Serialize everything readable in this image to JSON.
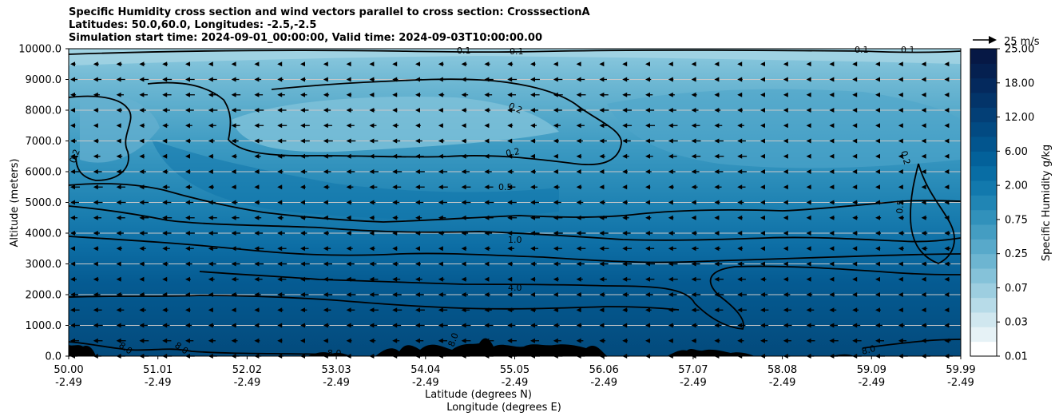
{
  "chart_data": {
    "type": "contour",
    "title_lines": [
      "Specific Humidity cross section and wind vectors parallel to cross section: CrosssectionA",
      "Latitudes: 50.0,60.0, Longitudes: -2.5,-2.5",
      "Simulation start time: 2024-09-01_00:00:00, Valid time: 2024-09-03T10:00:00.00"
    ],
    "ylabel": "Altitude (meters)",
    "xlabel_lines": [
      "Latitude (degrees N)",
      "Longitude (degrees E)"
    ],
    "ylim": [
      0,
      10000
    ],
    "y_ticks": [
      "0.0",
      "1000.0",
      "2000.0",
      "3000.0",
      "4000.0",
      "5000.0",
      "6000.0",
      "7000.0",
      "8000.0",
      "9000.0",
      "10000.0"
    ],
    "x_ticks_lat": [
      "50.00",
      "51.01",
      "52.02",
      "53.03",
      "54.04",
      "55.05",
      "56.06",
      "57.07",
      "58.08",
      "59.09",
      "59.99"
    ],
    "x_ticks_lon": [
      "-2.49",
      "-2.49",
      "-2.49",
      "-2.49",
      "-2.49",
      "-2.49",
      "-2.49",
      "-2.49",
      "-2.49",
      "-2.49",
      "-2.49"
    ],
    "colorbar": {
      "label": "Specific Humidity g/kg",
      "ticks": [
        "0.01",
        "0.03",
        "0.07",
        "0.25",
        "0.75",
        "2.00",
        "6.00",
        "12.00",
        "18.00",
        "25.00"
      ]
    },
    "contour_labels": [
      "0.1",
      "0.1",
      "0.1",
      "0.1",
      "0.2",
      "0.2",
      "0.2",
      "0.2",
      "0.5",
      "0.5",
      "1.0",
      "4.0",
      "8.0",
      "8.0",
      "8.0",
      "8.0",
      "8.0"
    ],
    "quiver_key": "25 m/s",
    "wind_direction": "toward south (left)",
    "colors": {
      "dark": "#024a7e",
      "mid": "#1a7db0",
      "light": "#7ec0d8",
      "lightest": "#f0f8fa"
    }
  }
}
